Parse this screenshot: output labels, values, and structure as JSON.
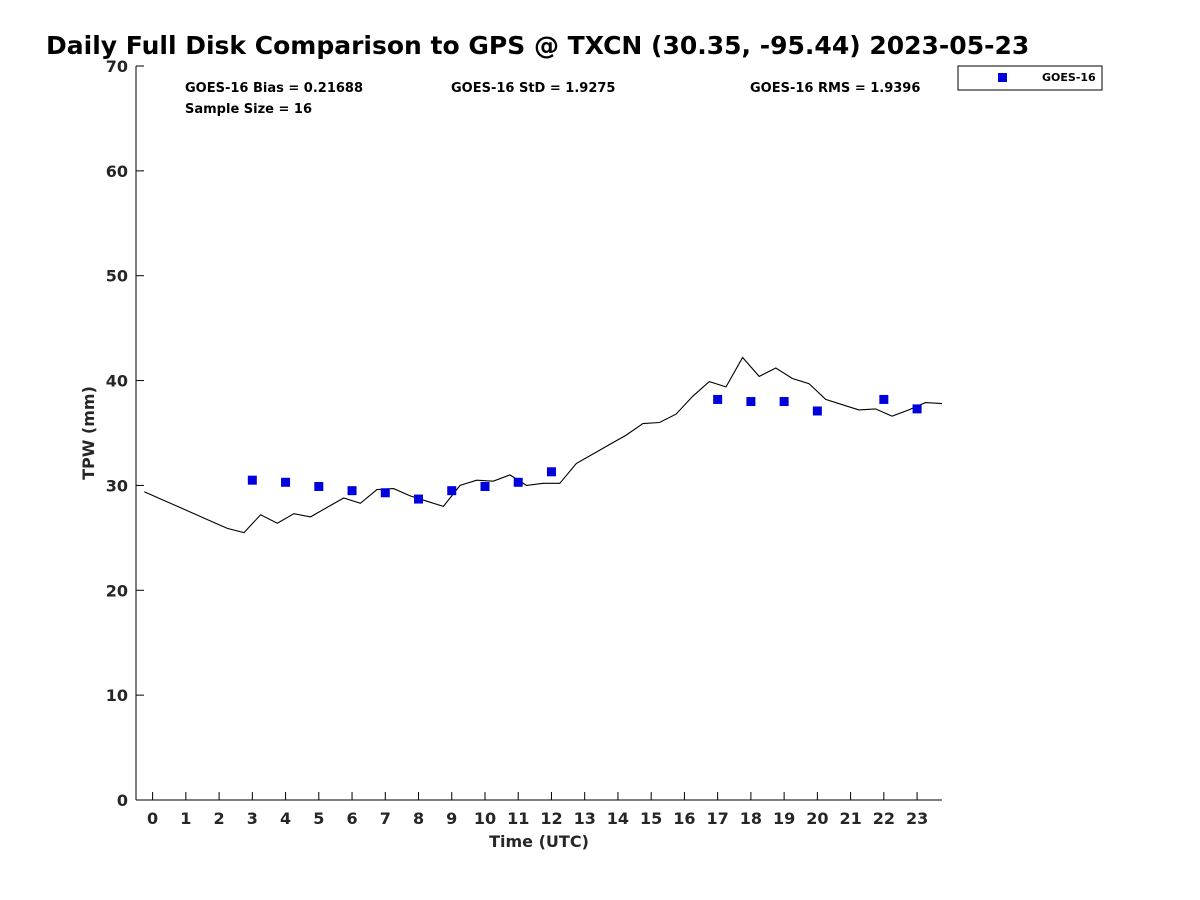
{
  "chart_data": {
    "type": "scatter",
    "title": "Daily Full Disk Comparison to GPS @ TXCN (30.35, -95.44) 2023-05-23",
    "xlabel": "Time (UTC)",
    "ylabel": "TPW (mm)",
    "xlim": [
      -0.5,
      23.75
    ],
    "ylim": [
      0,
      70
    ],
    "x_ticks": [
      0,
      1,
      2,
      3,
      4,
      5,
      6,
      7,
      8,
      9,
      10,
      11,
      12,
      13,
      14,
      15,
      16,
      17,
      18,
      19,
      20,
      21,
      22,
      23
    ],
    "x_tick_labels": [
      "0",
      "1",
      "2",
      "3",
      "4",
      "5",
      "6",
      "7",
      "8",
      "9",
      "10",
      "11",
      "12",
      "13",
      "14",
      "15",
      "16",
      "17",
      "18",
      "19",
      "20",
      "21",
      "22",
      "23"
    ],
    "y_ticks": [
      0,
      10,
      20,
      30,
      40,
      50,
      60,
      70
    ],
    "y_tick_labels": [
      "0",
      "10",
      "20",
      "30",
      "40",
      "50",
      "60",
      "70"
    ],
    "grid": false,
    "legend_position": "top-right outside",
    "stats": {
      "bias": "GOES-16 Bias = 0.21688",
      "std": "GOES-16 StD = 1.9275",
      "rms": "GOES-16 RMS = 1.9396",
      "sample": "Sample Size = 16"
    },
    "series": [
      {
        "name": "GOES-16",
        "kind": "scatter",
        "marker": "square",
        "color": "#0000dd",
        "x": [
          3,
          4,
          5,
          6,
          7,
          8,
          9,
          10,
          11,
          12,
          17,
          18,
          19,
          20,
          22,
          23
        ],
        "y": [
          30.5,
          30.3,
          29.9,
          29.5,
          29.3,
          28.7,
          29.5,
          29.9,
          30.3,
          31.3,
          38.2,
          38.0,
          38.0,
          37.1,
          38.2,
          37.3
        ]
      },
      {
        "kind": "line",
        "color": "#000000",
        "x": [
          -0.25,
          0.25,
          0.75,
          1.25,
          1.75,
          2.25,
          2.75,
          3.25,
          3.75,
          4.25,
          4.75,
          5.25,
          5.75,
          6.25,
          6.75,
          7.25,
          7.75,
          8.25,
          8.75,
          9.25,
          9.75,
          10.25,
          10.75,
          11.25,
          11.75,
          12.25,
          12.75,
          13.25,
          13.75,
          14.25,
          14.75,
          15.25,
          15.75,
          16.25,
          16.75,
          17.25,
          17.75,
          18.25,
          18.75,
          19.25,
          19.75,
          20.25,
          20.75,
          21.25,
          21.75,
          22.25,
          22.75,
          23.25,
          23.75
        ],
        "y": [
          29.4,
          28.7,
          28.0,
          27.3,
          26.6,
          25.9,
          25.5,
          27.2,
          26.4,
          27.3,
          27.0,
          27.9,
          28.8,
          28.3,
          29.6,
          29.7,
          29.0,
          28.5,
          28.0,
          30.0,
          30.5,
          30.4,
          31.0,
          30.0,
          30.2,
          30.2,
          32.1,
          33.0,
          33.9,
          34.8,
          35.9,
          36.0,
          36.8,
          38.5,
          39.9,
          39.4,
          42.2,
          40.4,
          41.2,
          40.2,
          39.7,
          38.2,
          37.7,
          37.2,
          37.3,
          36.6,
          37.2,
          37.9,
          37.8
        ]
      }
    ]
  }
}
